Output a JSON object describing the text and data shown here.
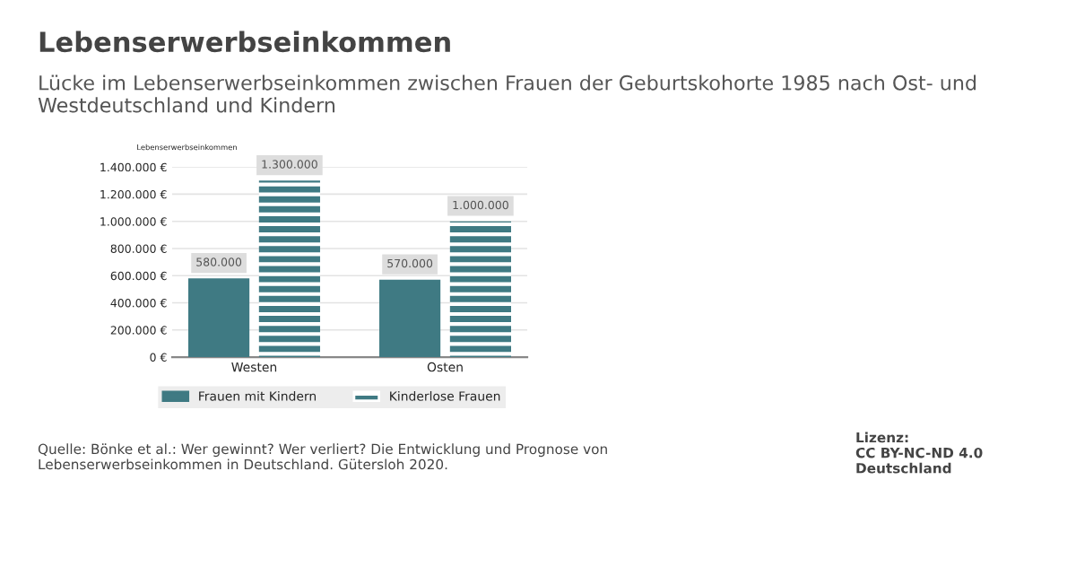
{
  "chart_data": {
    "type": "bar",
    "title": "Lebenserwerbseinkommen",
    "subtitle": "Lücke im Lebenserwerbseinkommen zwischen Frauen der Geburtskohorte 1985 nach Ost- und Westdeutschland und Kindern",
    "ylabel": "Lebenserwerbseinkommen",
    "categories": [
      "Westen",
      "Osten"
    ],
    "series": [
      {
        "name": "Frauen mit Kindern",
        "color": "#3f7a83",
        "values": [
          580000,
          570000
        ],
        "value_labels": [
          "580.000",
          "570.000"
        ]
      },
      {
        "name": "Kinderlose Frauen",
        "color": "#3f7a83",
        "values": [
          1300000,
          1000000
        ],
        "value_labels": [
          "1.300.000",
          "1.000.000"
        ]
      }
    ],
    "ylim": [
      0,
      1400000
    ],
    "yticks": [
      {
        "value": 0,
        "label": "0 €"
      },
      {
        "value": 200000,
        "label": "200.000 €"
      },
      {
        "value": 400000,
        "label": "400.000 €"
      },
      {
        "value": 600000,
        "label": "600.000 €"
      },
      {
        "value": 800000,
        "label": "800.000 €"
      },
      {
        "value": 1000000,
        "label": "1.000.000 €"
      },
      {
        "value": 1200000,
        "label": "1.200.000 €"
      },
      {
        "value": 1400000,
        "label": "1.400.000 €"
      }
    ],
    "grid": "y",
    "legend": "bottom",
    "annotations": [
      "Quelle: Bönke et al.: Wer gewinnt? Wer verliert? Die Entwicklung und Prognose von\nLebenserwerbseinkommen in Deutschland. Gütersloh 2020.",
      "Lizenz:\nCC BY-NC-ND 4.0\nDeutschland"
    ]
  }
}
